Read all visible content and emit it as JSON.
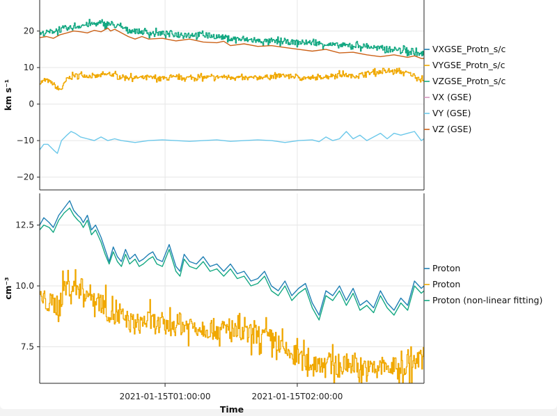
{
  "colors": {
    "blue": "#1f7fb4",
    "orange_y": "#f0a800",
    "green": "#14a882",
    "pink": "#d696c0",
    "skyblue": "#6cc8ea",
    "burnt": "#cc6218",
    "grid": "#e6e6e6",
    "frame": "#222222"
  },
  "chart_data": [
    {
      "type": "line",
      "ylabel": "km s⁻¹",
      "xlabel": "",
      "ylim": [
        -23.5,
        28.5
      ],
      "yticks": [
        20,
        10,
        0,
        -10,
        -20
      ],
      "ytick_labels": [
        "20",
        "10",
        "0",
        "−10",
        "−20"
      ],
      "x_range_hours": [
        0.0,
        2.82
      ],
      "series": [
        {
          "name": "VXGSE_Protn_s/c",
          "color": "#1f7fb4",
          "noise": 0.0,
          "x": [],
          "values": []
        },
        {
          "name": "VYGSE_Protn_s/c",
          "color": "#f0a800",
          "noise": 0.7,
          "x": [
            0.0,
            0.05,
            0.1,
            0.13,
            0.16,
            0.2,
            0.25,
            0.3,
            0.4,
            0.5,
            0.55,
            0.6,
            0.7,
            0.8,
            0.9,
            1.0,
            1.2,
            1.4,
            1.5,
            1.6,
            1.8,
            2.0,
            2.2,
            2.3,
            2.4,
            2.5,
            2.6,
            2.7,
            2.82
          ],
          "values": [
            6.0,
            6.5,
            5.5,
            4.0,
            4.2,
            7.0,
            7.8,
            8.0,
            7.5,
            8.2,
            8.0,
            7.5,
            7.2,
            7.3,
            7.0,
            7.2,
            7.3,
            7.5,
            7.0,
            7.3,
            7.8,
            7.0,
            8.2,
            7.6,
            8.5,
            8.8,
            9.0,
            8.5,
            6.5
          ]
        },
        {
          "name": "VZGSE_Protn_s/c",
          "color": "#14a882",
          "noise": 0.9,
          "x": [
            0.0,
            0.1,
            0.2,
            0.3,
            0.4,
            0.5,
            0.6,
            0.65,
            0.7,
            0.8,
            1.0,
            1.2,
            1.4,
            1.6,
            1.8,
            2.0,
            2.2,
            2.3,
            2.4,
            2.5,
            2.6,
            2.7,
            2.82
          ],
          "values": [
            19.2,
            20.0,
            20.6,
            21.5,
            22.0,
            22.0,
            21.0,
            20.2,
            20.0,
            19.5,
            19.2,
            19.0,
            18.0,
            17.3,
            17.0,
            16.8,
            16.0,
            16.0,
            15.8,
            15.2,
            15.0,
            14.5,
            13.5
          ]
        },
        {
          "name": "VX (GSE)",
          "color": "#d696c0",
          "noise": 0.0,
          "x": [],
          "values": []
        },
        {
          "name": "VY (GSE)",
          "color": "#6cc8ea",
          "noise": 0.0,
          "x": [
            0.0,
            0.03,
            0.06,
            0.1,
            0.13,
            0.16,
            0.2,
            0.23,
            0.26,
            0.3,
            0.35,
            0.4,
            0.45,
            0.5,
            0.55,
            0.6,
            0.7,
            0.8,
            0.9,
            1.0,
            1.1,
            1.2,
            1.3,
            1.4,
            1.5,
            1.6,
            1.7,
            1.8,
            1.9,
            2.0,
            2.05,
            2.1,
            2.15,
            2.2,
            2.25,
            2.3,
            2.35,
            2.4,
            2.45,
            2.5,
            2.55,
            2.6,
            2.65,
            2.7,
            2.75,
            2.8,
            2.82
          ],
          "values": [
            -12.5,
            -11.0,
            -11.0,
            -12.5,
            -13.5,
            -10.0,
            -8.5,
            -7.5,
            -8.0,
            -9.0,
            -9.5,
            -10.0,
            -9.0,
            -10.0,
            -9.5,
            -10.0,
            -10.5,
            -10.0,
            -9.8,
            -10.0,
            -10.2,
            -10.0,
            -9.8,
            -10.2,
            -10.0,
            -9.8,
            -10.0,
            -10.5,
            -10.0,
            -9.8,
            -10.3,
            -9.0,
            -10.0,
            -9.5,
            -7.5,
            -9.5,
            -8.5,
            -10.0,
            -9.0,
            -8.0,
            -9.5,
            -8.0,
            -8.5,
            -8.0,
            -7.5,
            -10.0,
            -9.5
          ]
        },
        {
          "name": "VZ (GSE)",
          "color": "#cc6218",
          "noise": 0.0,
          "x": [
            0.0,
            0.05,
            0.1,
            0.15,
            0.2,
            0.25,
            0.3,
            0.35,
            0.4,
            0.45,
            0.5,
            0.52,
            0.55,
            0.6,
            0.65,
            0.7,
            0.75,
            0.8,
            0.9,
            1.0,
            1.1,
            1.2,
            1.3,
            1.35,
            1.4,
            1.5,
            1.6,
            1.7,
            1.8,
            1.9,
            2.0,
            2.1,
            2.2,
            2.3,
            2.4,
            2.5,
            2.6,
            2.7,
            2.75,
            2.8,
            2.82
          ],
          "values": [
            18.2,
            18.5,
            18.0,
            19.0,
            19.5,
            20.0,
            19.8,
            19.5,
            20.2,
            19.8,
            20.8,
            20.0,
            20.5,
            19.5,
            18.5,
            17.8,
            18.5,
            17.8,
            18.0,
            17.3,
            17.8,
            17.0,
            16.8,
            17.2,
            16.0,
            16.5,
            15.8,
            16.0,
            15.5,
            15.0,
            14.5,
            15.0,
            14.0,
            14.2,
            13.5,
            13.0,
            13.5,
            12.8,
            13.2,
            12.5,
            12.5
          ]
        }
      ],
      "legend": [
        "VXGSE_Protn_s/c",
        "VYGSE_Protn_s/c",
        "VZGSE_Protn_s/c",
        "VX (GSE)",
        "VY (GSE)",
        "VZ (GSE)"
      ]
    },
    {
      "type": "line",
      "ylabel": "cm⁻³",
      "xlabel": "Time",
      "ylim": [
        6.0,
        13.8
      ],
      "yticks": [
        12.5,
        10.0,
        7.5
      ],
      "ytick_labels": [
        "12.5",
        "10.0",
        "7.5"
      ],
      "x_range_hours": [
        0.0,
        2.82
      ],
      "xticks_hours": [
        0.92,
        1.89
      ],
      "xtick_labels": [
        "2021-01-15T01:00:00",
        "2021-01-15T02:00:00"
      ],
      "series": [
        {
          "name": "Proton",
          "color": "#1f7fb4",
          "noise": 0.0,
          "x": [
            0.0,
            0.03,
            0.07,
            0.1,
            0.14,
            0.18,
            0.22,
            0.25,
            0.28,
            0.3,
            0.32,
            0.35,
            0.38,
            0.41,
            0.45,
            0.48,
            0.51,
            0.54,
            0.57,
            0.6,
            0.63,
            0.66,
            0.7,
            0.73,
            0.76,
            0.8,
            0.83,
            0.86,
            0.9,
            0.95,
            1.0,
            1.03,
            1.06,
            1.1,
            1.15,
            1.2,
            1.25,
            1.3,
            1.35,
            1.4,
            1.45,
            1.5,
            1.55,
            1.6,
            1.65,
            1.7,
            1.75,
            1.8,
            1.85,
            1.9,
            1.95,
            2.0,
            2.05,
            2.1,
            2.15,
            2.2,
            2.25,
            2.3,
            2.35,
            2.4,
            2.45,
            2.5,
            2.55,
            2.6,
            2.65,
            2.7,
            2.75,
            2.8,
            2.82
          ],
          "values": [
            12.5,
            12.8,
            12.6,
            12.4,
            12.9,
            13.2,
            13.5,
            13.1,
            12.9,
            12.8,
            12.6,
            12.9,
            12.3,
            12.5,
            12.0,
            11.5,
            11.0,
            11.6,
            11.2,
            11.0,
            11.5,
            11.1,
            11.3,
            11.0,
            11.1,
            11.3,
            11.4,
            11.1,
            11.0,
            11.7,
            10.8,
            10.6,
            11.3,
            11.0,
            10.9,
            11.2,
            10.8,
            10.9,
            10.6,
            10.9,
            10.5,
            10.6,
            10.2,
            10.3,
            10.6,
            10.0,
            9.8,
            10.2,
            9.6,
            9.9,
            10.1,
            9.3,
            8.8,
            9.8,
            9.6,
            10.0,
            9.4,
            9.9,
            9.2,
            9.4,
            9.1,
            9.8,
            9.3,
            9.0,
            9.5,
            9.2,
            10.2,
            9.9,
            10.0
          ]
        },
        {
          "name": "Proton",
          "color": "#f0a800",
          "noise": 0.55,
          "x": [
            0.0,
            0.1,
            0.15,
            0.17,
            0.2,
            0.3,
            0.4,
            0.48,
            0.5,
            0.6,
            0.7,
            0.8,
            0.9,
            1.0,
            1.1,
            1.2,
            1.3,
            1.4,
            1.5,
            1.6,
            1.7,
            1.75,
            1.8,
            1.85,
            1.9,
            2.0,
            2.1,
            2.2,
            2.3,
            2.4,
            2.5,
            2.6,
            2.7,
            2.8,
            2.82
          ],
          "values": [
            9.5,
            9.2,
            9.4,
            9.8,
            10.0,
            9.9,
            9.5,
            9.2,
            8.9,
            8.7,
            8.4,
            8.6,
            8.3,
            8.4,
            8.4,
            8.3,
            8.2,
            8.1,
            8.0,
            8.0,
            7.8,
            7.6,
            7.3,
            7.2,
            7.0,
            6.8,
            6.9,
            6.6,
            6.9,
            6.5,
            6.7,
            6.6,
            6.7,
            7.0,
            7.0
          ]
        },
        {
          "name": "Proton (non-linear fitting)",
          "color": "#14a882",
          "noise": 0.0,
          "x": [
            0.0,
            0.03,
            0.07,
            0.1,
            0.14,
            0.18,
            0.22,
            0.25,
            0.28,
            0.3,
            0.32,
            0.35,
            0.38,
            0.41,
            0.45,
            0.48,
            0.51,
            0.54,
            0.57,
            0.6,
            0.63,
            0.66,
            0.7,
            0.73,
            0.76,
            0.8,
            0.83,
            0.86,
            0.9,
            0.95,
            1.0,
            1.03,
            1.06,
            1.1,
            1.15,
            1.2,
            1.25,
            1.3,
            1.35,
            1.4,
            1.45,
            1.5,
            1.55,
            1.6,
            1.65,
            1.7,
            1.75,
            1.8,
            1.85,
            1.9,
            1.95,
            2.0,
            2.05,
            2.1,
            2.15,
            2.2,
            2.25,
            2.3,
            2.35,
            2.4,
            2.45,
            2.5,
            2.55,
            2.6,
            2.65,
            2.7,
            2.75,
            2.8,
            2.82
          ],
          "values": [
            12.3,
            12.5,
            12.4,
            12.2,
            12.7,
            13.0,
            13.2,
            12.9,
            12.7,
            12.6,
            12.4,
            12.7,
            12.1,
            12.3,
            11.8,
            11.3,
            10.9,
            11.4,
            11.0,
            10.8,
            11.3,
            10.9,
            11.1,
            10.8,
            10.9,
            11.1,
            11.2,
            10.9,
            10.8,
            11.5,
            10.6,
            10.4,
            11.1,
            10.8,
            10.7,
            11.0,
            10.6,
            10.7,
            10.4,
            10.7,
            10.3,
            10.4,
            10.0,
            10.1,
            10.4,
            9.8,
            9.6,
            10.0,
            9.4,
            9.7,
            9.9,
            9.1,
            8.6,
            9.6,
            9.4,
            9.8,
            9.2,
            9.7,
            9.0,
            9.2,
            8.9,
            9.6,
            9.1,
            8.8,
            9.3,
            9.0,
            10.0,
            9.7,
            9.8
          ]
        }
      ],
      "legend": [
        "Proton",
        "Proton",
        "Proton (non-linear fitting)"
      ]
    }
  ]
}
